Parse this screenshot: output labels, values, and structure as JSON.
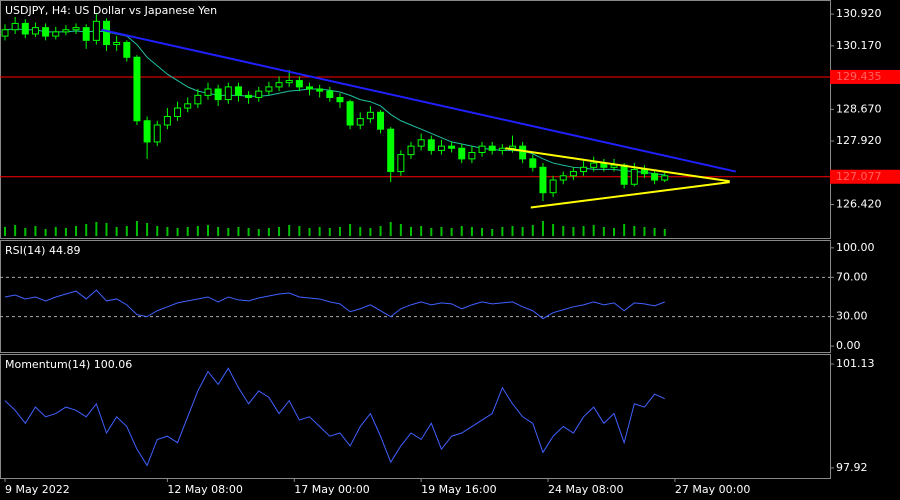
{
  "chart_data": [
    {
      "type": "candlestick",
      "title": "USDJPY, H4:  US Dollar vs Japanese Yen",
      "open": [
        130.4,
        130.55,
        130.7,
        130.45,
        130.6,
        130.4,
        130.5,
        130.55,
        130.6,
        130.3,
        130.75,
        130.2,
        130.25,
        129.9,
        128.4,
        127.9,
        128.3,
        128.5,
        128.7,
        128.8,
        129.0,
        129.15,
        128.9,
        129.2,
        129.0,
        128.95,
        129.1,
        129.2,
        129.3,
        129.35,
        129.2,
        129.15,
        129.1,
        128.95,
        128.85,
        128.3,
        128.45,
        128.6,
        128.2,
        127.2,
        127.6,
        127.8,
        127.95,
        127.7,
        127.8,
        127.75,
        127.5,
        127.65,
        127.8,
        127.7,
        127.75,
        127.8,
        127.5,
        127.3,
        126.7,
        127.0,
        127.1,
        127.2,
        127.3,
        127.4,
        127.3,
        127.35,
        126.9,
        127.25,
        127.15,
        127.0
      ],
      "high": [
        130.68,
        130.85,
        130.8,
        130.72,
        130.7,
        130.62,
        130.66,
        130.7,
        130.68,
        130.92,
        130.82,
        130.4,
        130.3,
        129.95,
        128.5,
        128.4,
        128.7,
        128.85,
        128.95,
        129.15,
        129.3,
        129.25,
        129.3,
        129.3,
        129.1,
        129.2,
        129.32,
        129.45,
        129.6,
        129.45,
        129.3,
        129.25,
        129.2,
        129.05,
        128.9,
        128.6,
        128.75,
        128.65,
        128.25,
        127.7,
        127.9,
        128.1,
        128.05,
        127.95,
        127.9,
        127.85,
        127.8,
        127.9,
        127.9,
        127.85,
        128.05,
        127.9,
        127.6,
        127.4,
        127.1,
        127.2,
        127.3,
        127.45,
        127.55,
        127.5,
        127.5,
        127.4,
        127.4,
        127.35,
        127.25,
        127.2
      ],
      "low": [
        130.3,
        130.45,
        130.35,
        130.38,
        130.3,
        130.32,
        130.42,
        130.45,
        130.1,
        130.2,
        130.05,
        130.05,
        129.8,
        128.3,
        127.5,
        127.8,
        128.2,
        128.4,
        128.6,
        128.7,
        128.9,
        128.75,
        128.8,
        128.85,
        128.8,
        128.85,
        129.0,
        129.1,
        129.2,
        129.1,
        129.0,
        128.95,
        128.85,
        128.7,
        128.2,
        128.2,
        128.35,
        128.1,
        126.95,
        127.1,
        127.5,
        127.7,
        127.6,
        127.6,
        127.65,
        127.4,
        127.4,
        127.55,
        127.6,
        127.6,
        127.65,
        127.4,
        127.2,
        126.5,
        126.6,
        126.9,
        127.0,
        127.1,
        127.2,
        127.2,
        127.2,
        126.8,
        126.85,
        127.05,
        126.9,
        126.95
      ],
      "close": [
        130.55,
        130.7,
        130.45,
        130.6,
        130.4,
        130.5,
        130.55,
        130.6,
        130.3,
        130.75,
        130.2,
        130.25,
        129.9,
        128.4,
        127.9,
        128.3,
        128.5,
        128.7,
        128.8,
        129.0,
        129.15,
        128.9,
        129.2,
        129.0,
        128.95,
        129.1,
        129.2,
        129.3,
        129.35,
        129.2,
        129.15,
        129.1,
        128.95,
        128.85,
        128.3,
        128.45,
        128.6,
        128.2,
        127.2,
        127.6,
        127.8,
        127.95,
        127.7,
        127.8,
        127.75,
        127.5,
        127.65,
        127.8,
        127.7,
        127.75,
        127.8,
        127.5,
        127.3,
        126.7,
        127.0,
        127.1,
        127.2,
        127.3,
        127.4,
        127.3,
        127.35,
        126.9,
        127.25,
        127.15,
        127.0,
        127.1
      ],
      "ma": [
        130.55,
        130.57,
        130.55,
        130.55,
        130.5,
        130.5,
        130.5,
        130.52,
        130.5,
        130.52,
        130.5,
        130.45,
        130.4,
        130.2,
        129.9,
        129.7,
        129.5,
        129.35,
        129.2,
        129.1,
        129.05,
        129.0,
        129.0,
        129.0,
        128.98,
        128.98,
        129.0,
        129.05,
        129.1,
        129.12,
        129.15,
        129.15,
        129.12,
        129.08,
        129.0,
        128.9,
        128.85,
        128.75,
        128.55,
        128.4,
        128.3,
        128.2,
        128.1,
        128.0,
        127.9,
        127.85,
        127.8,
        127.75,
        127.72,
        127.7,
        127.7,
        127.68,
        127.62,
        127.5,
        127.4,
        127.35,
        127.3,
        127.28,
        127.25,
        127.25,
        127.25,
        127.22,
        127.2,
        127.18,
        127.15,
        127.12
      ],
      "ma_color": "#20c0a0",
      "volume": [
        9,
        11,
        8,
        10,
        7,
        9,
        8,
        10,
        12,
        14,
        13,
        9,
        10,
        15,
        13,
        10,
        9,
        8,
        9,
        10,
        11,
        9,
        8,
        9,
        8,
        7,
        8,
        9,
        11,
        10,
        8,
        9,
        8,
        9,
        12,
        9,
        8,
        10,
        14,
        12,
        9,
        10,
        8,
        9,
        8,
        10,
        9,
        8,
        7,
        9,
        10,
        9,
        11,
        15,
        12,
        10,
        9,
        10,
        11,
        9,
        8,
        12,
        10,
        9,
        8,
        7
      ],
      "up_color": "#00ff00",
      "down_color": "#00ff00",
      "volume_color": "#00c000",
      "ylim": [
        125.63,
        131.253
      ],
      "yticks": [
        {
          "value": 130.92,
          "label": "130.920"
        },
        {
          "value": 130.17,
          "label": "130.170"
        },
        {
          "value": 128.67,
          "label": "128.670"
        },
        {
          "value": 127.92,
          "label": "127.920"
        },
        {
          "value": 126.42,
          "label": "126.420"
        }
      ],
      "hlines": [
        {
          "value": 129.435,
          "label": "129.435",
          "color": "#ff0000"
        },
        {
          "value": 127.077,
          "label": "127.077",
          "color": "#ff0000"
        }
      ],
      "trendlines": [
        {
          "x": [
            9.5,
            72
          ],
          "y": [
            130.55,
            127.2
          ],
          "color": "#2020ff"
        },
        {
          "x": [
            49.3,
            71.4
          ],
          "y": [
            127.75,
            126.97
          ],
          "color": "#ffff00"
        },
        {
          "x": [
            51.8,
            71.4
          ],
          "y": [
            126.35,
            126.95
          ],
          "color": "#ffff00"
        }
      ],
      "xticks": [
        {
          "value": 0,
          "label": "9 May 2022"
        },
        {
          "value": 16,
          "label": "12 May 08:00"
        },
        {
          "value": 28.5,
          "label": "17 May 00:00"
        },
        {
          "value": 41,
          "label": "19 May 16:00"
        },
        {
          "value": 53.5,
          "label": "24 May 08:00"
        },
        {
          "value": 66,
          "label": "27 May 00:00"
        }
      ]
    },
    {
      "type": "line",
      "title": "RSI(14) 44.89",
      "color": "#4060ff",
      "values": [
        50,
        52,
        48,
        50,
        46,
        50,
        53,
        56,
        48,
        57,
        46,
        48,
        42,
        32,
        30,
        36,
        40,
        44,
        46,
        48,
        50,
        45,
        50,
        47,
        46,
        49,
        51,
        53,
        54,
        50,
        49,
        48,
        45,
        43,
        35,
        38,
        42,
        36,
        30,
        38,
        42,
        45,
        42,
        44,
        43,
        38,
        42,
        45,
        43,
        44,
        45,
        40,
        36,
        28,
        34,
        37,
        40,
        42,
        45,
        42,
        44,
        36,
        44,
        43,
        41,
        44.89
      ],
      "ylim": [
        -6,
        108
      ],
      "yticks": [
        {
          "value": 100,
          "label": "100.00"
        },
        {
          "value": 70,
          "label": "70.00"
        },
        {
          "value": 30,
          "label": "30.00"
        },
        {
          "value": 0,
          "label": "0.00"
        }
      ],
      "levels": [
        70,
        30
      ]
    },
    {
      "type": "line",
      "title": "Momentum(14) 100.06",
      "color": "#4060ff",
      "values": [
        100.0,
        99.7,
        99.3,
        99.8,
        99.5,
        99.6,
        99.8,
        99.7,
        99.5,
        99.9,
        99.0,
        99.5,
        99.2,
        98.5,
        98.0,
        98.8,
        98.9,
        98.7,
        99.5,
        100.3,
        100.9,
        100.5,
        101.0,
        100.4,
        99.9,
        100.3,
        100.1,
        99.6,
        100.0,
        99.4,
        99.5,
        99.2,
        98.9,
        99.0,
        98.6,
        99.2,
        99.6,
        98.9,
        98.1,
        98.6,
        99.0,
        98.8,
        99.3,
        98.5,
        98.9,
        99.0,
        99.2,
        99.4,
        99.6,
        100.4,
        99.9,
        99.5,
        99.3,
        98.4,
        98.9,
        99.2,
        99.0,
        99.5,
        99.8,
        99.3,
        99.6,
        98.7,
        99.9,
        99.8,
        100.2,
        100.06
      ],
      "ylim": [
        97.61,
        101.44
      ],
      "yticks": [
        101.13,
        97.92
      ]
    }
  ]
}
